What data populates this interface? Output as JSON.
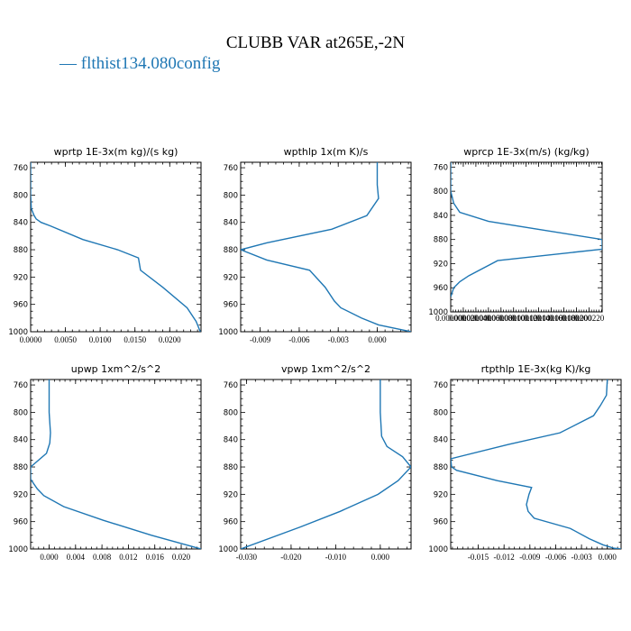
{
  "title": "CLUBB VAR at265E,-2N",
  "legend": {
    "label": "— flthist134.080config",
    "color": "#1f77b4"
  },
  "line_color": "#1f77b4",
  "chart_data": [
    {
      "type": "line",
      "title": "wprtp  1E-3x(m kg)/(s kg)",
      "y_label_ticks": [
        760,
        800,
        840,
        880,
        920,
        960,
        1000
      ],
      "ylim": [
        1000,
        752
      ],
      "xlim": [
        0.0,
        0.0245
      ],
      "x_ticks": [
        0.0,
        0.005,
        0.01,
        0.015,
        0.02
      ],
      "x_tick_labels": [
        "0.0000",
        "0.0050",
        "0.0100",
        "0.0150",
        "0.0200"
      ],
      "series": [
        {
          "x": [
            0.0,
            0.0,
            0.0001,
            0.0005,
            0.0008,
            0.0015,
            0.0028,
            0.0075,
            0.0125,
            0.0155,
            0.0158,
            0.019,
            0.0225,
            0.0238,
            0.0244
          ],
          "y": [
            752,
            800,
            820,
            830,
            835,
            840,
            845,
            865,
            880,
            892,
            910,
            935,
            965,
            985,
            1000
          ]
        }
      ]
    },
    {
      "type": "line",
      "title": "wpthlp  1x(m K)/s",
      "y_label_ticks": [
        760,
        800,
        840,
        880,
        920,
        960,
        1000
      ],
      "ylim": [
        1000,
        752
      ],
      "xlim": [
        -0.0105,
        0.0026
      ],
      "x_ticks": [
        -0.009,
        -0.006,
        -0.003,
        0.0
      ],
      "x_tick_labels": [
        "-0.009",
        "-0.006",
        "-0.003",
        "0.000"
      ],
      "series": [
        {
          "x": [
            0.0,
            0.0,
            0.0001,
            -0.0008,
            -0.0035,
            -0.0085,
            -0.0105,
            -0.0085,
            -0.0052,
            -0.004,
            -0.0033,
            -0.0028,
            -0.0012,
            0.0001,
            0.0026
          ],
          "y": [
            752,
            785,
            805,
            830,
            850,
            870,
            880,
            895,
            910,
            935,
            955,
            965,
            980,
            990,
            1000
          ]
        }
      ]
    },
    {
      "type": "line",
      "title": "wprcp  1E-3x(m/s) (kg/kg)",
      "y_label_ticks": [
        760,
        800,
        840,
        880,
        920,
        960,
        1000
      ],
      "ylim": [
        1000,
        752
      ],
      "xlim": [
        0.0,
        1.0
      ],
      "x_ticks": [
        0.0,
        0.083,
        0.166,
        0.249,
        0.332,
        0.415,
        0.498,
        0.581,
        0.664,
        0.747,
        0.83,
        0.913
      ],
      "x_tick_labels": [
        "0.000000",
        "0.000020",
        "0.000040",
        "0.000060",
        "0.000080",
        "0.000100",
        "0.000120",
        "0.000140",
        "0.000160",
        "0.000180",
        "0.000200",
        "0.000220"
      ],
      "series": [
        {
          "x": [
            0.0,
            0.0,
            0.02,
            0.06,
            0.25,
            1.0,
            1.0,
            0.31,
            0.12,
            0.06,
            0.02,
            0.0
          ],
          "y": [
            752,
            800,
            820,
            835,
            850,
            880,
            896,
            915,
            940,
            950,
            960,
            975
          ]
        }
      ]
    },
    {
      "type": "line",
      "title": "upwp  1xm^2/s^2",
      "y_label_ticks": [
        760,
        800,
        840,
        880,
        920,
        960,
        1000
      ],
      "ylim": [
        1000,
        752
      ],
      "xlim": [
        -0.0028,
        0.023
      ],
      "x_ticks": [
        0.0,
        0.004,
        0.008,
        0.012,
        0.016,
        0.02
      ],
      "x_tick_labels": [
        "0.000",
        "0.004",
        "0.008",
        "0.012",
        "0.016",
        "0.020"
      ],
      "series": [
        {
          "x": [
            0.0,
            0.0,
            0.0002,
            0.0001,
            -0.0004,
            -0.0028,
            -0.0028,
            -0.0018,
            -0.0008,
            0.0022,
            0.0082,
            0.0155,
            0.023
          ],
          "y": [
            752,
            800,
            830,
            845,
            860,
            880,
            898,
            912,
            922,
            938,
            958,
            980,
            1000
          ]
        }
      ]
    },
    {
      "type": "line",
      "title": "vpwp  1xm^2/s^2",
      "y_label_ticks": [
        760,
        800,
        840,
        880,
        920,
        960,
        1000
      ],
      "ylim": [
        1000,
        752
      ],
      "xlim": [
        -0.0313,
        0.0069
      ],
      "x_ticks": [
        -0.03,
        -0.02,
        -0.01,
        0.0
      ],
      "x_tick_labels": [
        "-0.030",
        "-0.020",
        "-0.010",
        "0.000"
      ],
      "series": [
        {
          "x": [
            0.0,
            0.0,
            0.0003,
            0.0015,
            0.005,
            0.0069,
            0.004,
            -0.0005,
            -0.009,
            -0.018,
            -0.0313
          ],
          "y": [
            752,
            800,
            835,
            850,
            865,
            880,
            900,
            920,
            945,
            968,
            1000
          ]
        }
      ]
    },
    {
      "type": "line",
      "title": "rtpthlp  1E-3x(kg K)/kg",
      "y_label_ticks": [
        760,
        800,
        840,
        880,
        920,
        960,
        1000
      ],
      "ylim": [
        1000,
        752
      ],
      "xlim": [
        -0.0182,
        0.0016
      ],
      "x_ticks": [
        -0.015,
        -0.012,
        -0.009,
        -0.006,
        -0.003,
        0.0
      ],
      "x_tick_labels": [
        "-0.015",
        "-0.012",
        "-0.009",
        "-0.006",
        "-0.003",
        "0.000"
      ],
      "series": [
        {
          "x": [
            0.0,
            -0.0001,
            -0.0008,
            -0.0016,
            -0.0055,
            -0.0115,
            -0.0182,
            -0.0181,
            -0.0175,
            -0.0128,
            -0.0088,
            -0.0091,
            -0.0094,
            -0.0092,
            -0.0085,
            -0.0043,
            -0.0021,
            -0.0005,
            0.0008,
            0.0016
          ],
          "y": [
            752,
            775,
            790,
            805,
            830,
            847,
            868,
            880,
            885,
            900,
            910,
            920,
            935,
            945,
            955,
            970,
            985,
            994,
            999,
            1000
          ]
        }
      ]
    }
  ]
}
